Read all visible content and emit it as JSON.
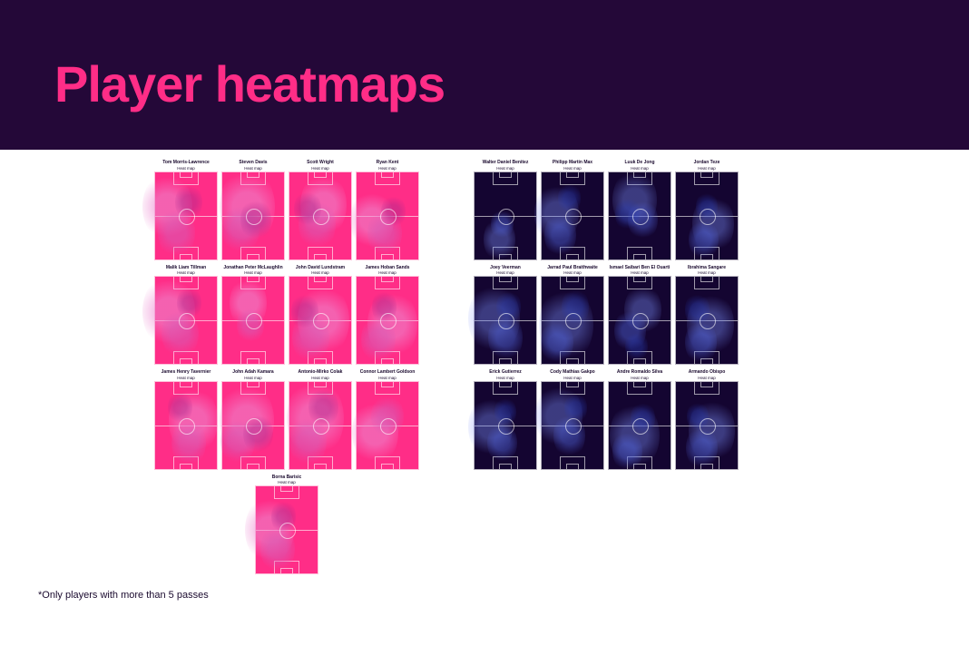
{
  "header": {
    "title": "Player heatmaps"
  },
  "footnote": "*Only players with more than 5 passes",
  "pitch_sublabel": "Heat map",
  "colors": {
    "header_bg": "#240838",
    "accent_pink": "#ff2d87",
    "accent_navy": "#140531",
    "heat_pink": [
      "rgba(236,140,210,0.55)",
      "rgba(214,90,180,0.55)",
      "rgba(170,40,140,0.45)"
    ],
    "heat_blue": [
      "rgba(120,140,245,0.40)",
      "rgba(80,100,220,0.45)",
      "rgba(40,60,180,0.40)"
    ]
  },
  "teams": [
    {
      "name": "team-a",
      "style": "pink",
      "rows": [
        [
          {
            "name": "Tom Morris-Lawrence",
            "blobs": [
              {
                "x": 20,
                "y": 40,
                "r": 40
              },
              {
                "x": 35,
                "y": 70,
                "r": 30
              },
              {
                "x": 55,
                "y": 35,
                "r": 22
              }
            ]
          },
          {
            "name": "Steven Davis",
            "blobs": [
              {
                "x": 40,
                "y": 40,
                "r": 45
              },
              {
                "x": 30,
                "y": 65,
                "r": 30
              },
              {
                "x": 55,
                "y": 55,
                "r": 25
              }
            ]
          },
          {
            "name": "Scott Wright",
            "blobs": [
              {
                "x": 55,
                "y": 38,
                "r": 38
              },
              {
                "x": 45,
                "y": 60,
                "r": 30
              },
              {
                "x": 30,
                "y": 42,
                "r": 22
              }
            ]
          },
          {
            "name": "Ryan Kent",
            "blobs": [
              {
                "x": 25,
                "y": 55,
                "r": 35
              },
              {
                "x": 45,
                "y": 70,
                "r": 28
              },
              {
                "x": 60,
                "y": 45,
                "r": 20
              }
            ]
          }
        ],
        [
          {
            "name": "Malik Liam Tillman",
            "blobs": [
              {
                "x": 22,
                "y": 40,
                "r": 42
              },
              {
                "x": 40,
                "y": 65,
                "r": 30
              },
              {
                "x": 55,
                "y": 30,
                "r": 20
              }
            ]
          },
          {
            "name": "Jonathan Peter McLaughlin",
            "blobs": [
              {
                "x": 42,
                "y": 30,
                "r": 30
              },
              {
                "x": 45,
                "y": 55,
                "r": 22
              }
            ]
          },
          {
            "name": "John David Lundstram",
            "blobs": [
              {
                "x": 55,
                "y": 50,
                "r": 42
              },
              {
                "x": 35,
                "y": 70,
                "r": 30
              },
              {
                "x": 25,
                "y": 40,
                "r": 22
              }
            ]
          },
          {
            "name": "James Hoban Sands",
            "blobs": [
              {
                "x": 58,
                "y": 55,
                "r": 40
              },
              {
                "x": 35,
                "y": 72,
                "r": 28
              },
              {
                "x": 45,
                "y": 35,
                "r": 20
              }
            ]
          }
        ],
        [
          {
            "name": "James Henry Tavernier",
            "blobs": [
              {
                "x": 62,
                "y": 45,
                "r": 40
              },
              {
                "x": 55,
                "y": 70,
                "r": 28
              },
              {
                "x": 40,
                "y": 30,
                "r": 20
              }
            ]
          },
          {
            "name": "John Adah Kamara",
            "blobs": [
              {
                "x": 40,
                "y": 45,
                "r": 44
              },
              {
                "x": 25,
                "y": 68,
                "r": 28
              },
              {
                "x": 58,
                "y": 60,
                "r": 24
              }
            ]
          },
          {
            "name": "Antonio-Mirko Colak",
            "blobs": [
              {
                "x": 42,
                "y": 42,
                "r": 46
              },
              {
                "x": 30,
                "y": 68,
                "r": 30
              },
              {
                "x": 55,
                "y": 30,
                "r": 24
              }
            ]
          },
          {
            "name": "Connor Lambert Goldson",
            "blobs": [
              {
                "x": 30,
                "y": 58,
                "r": 38
              },
              {
                "x": 50,
                "y": 40,
                "r": 26
              }
            ]
          }
        ],
        [
          {
            "name": "Borna Barisic",
            "blobs": [
              {
                "x": 22,
                "y": 50,
                "r": 40
              },
              {
                "x": 35,
                "y": 72,
                "r": 28
              },
              {
                "x": 45,
                "y": 35,
                "r": 20
              }
            ]
          }
        ]
      ]
    },
    {
      "name": "team-b",
      "style": "navy",
      "rows": [
        [
          {
            "name": "Walter Daniel Benitez",
            "blobs": [
              {
                "x": 40,
                "y": 78,
                "r": 26
              },
              {
                "x": 45,
                "y": 60,
                "r": 18
              }
            ]
          },
          {
            "name": "Philipp Martin Max",
            "blobs": [
              {
                "x": 24,
                "y": 48,
                "r": 36
              },
              {
                "x": 30,
                "y": 72,
                "r": 26
              },
              {
                "x": 45,
                "y": 30,
                "r": 18
              }
            ]
          },
          {
            "name": "Luuk De Jong",
            "blobs": [
              {
                "x": 42,
                "y": 32,
                "r": 36
              },
              {
                "x": 55,
                "y": 55,
                "r": 24
              },
              {
                "x": 30,
                "y": 48,
                "r": 20
              }
            ]
          },
          {
            "name": "Jordan Teze",
            "blobs": [
              {
                "x": 60,
                "y": 60,
                "r": 34
              },
              {
                "x": 45,
                "y": 78,
                "r": 24
              },
              {
                "x": 50,
                "y": 40,
                "r": 18
              }
            ]
          }
        ],
        [
          {
            "name": "Joey Veerman",
            "blobs": [
              {
                "x": 32,
                "y": 48,
                "r": 42
              },
              {
                "x": 50,
                "y": 70,
                "r": 28
              },
              {
                "x": 55,
                "y": 35,
                "r": 20
              }
            ]
          },
          {
            "name": "Jarrad Paul Braithwaite",
            "blobs": [
              {
                "x": 40,
                "y": 55,
                "r": 44
              },
              {
                "x": 25,
                "y": 75,
                "r": 26
              },
              {
                "x": 55,
                "y": 35,
                "r": 22
              }
            ]
          },
          {
            "name": "Ismael Saibari Ben El Ouarti",
            "blobs": [
              {
                "x": 55,
                "y": 38,
                "r": 30
              },
              {
                "x": 35,
                "y": 62,
                "r": 26
              },
              {
                "x": 45,
                "y": 80,
                "r": 18
              }
            ]
          },
          {
            "name": "Ibrahima Sangare",
            "blobs": [
              {
                "x": 56,
                "y": 55,
                "r": 38
              },
              {
                "x": 40,
                "y": 75,
                "r": 26
              },
              {
                "x": 35,
                "y": 38,
                "r": 20
              }
            ]
          }
        ],
        [
          {
            "name": "Erick Gutierrez",
            "blobs": [
              {
                "x": 26,
                "y": 52,
                "r": 36
              },
              {
                "x": 45,
                "y": 70,
                "r": 24
              },
              {
                "x": 50,
                "y": 35,
                "r": 18
              }
            ]
          },
          {
            "name": "Cody Mathias Gakpo",
            "blobs": [
              {
                "x": 28,
                "y": 40,
                "r": 38
              },
              {
                "x": 45,
                "y": 62,
                "r": 26
              },
              {
                "x": 55,
                "y": 30,
                "r": 18
              }
            ]
          },
          {
            "name": "Andre Romaldo Silva",
            "blobs": [
              {
                "x": 42,
                "y": 62,
                "r": 40
              },
              {
                "x": 30,
                "y": 80,
                "r": 24
              },
              {
                "x": 55,
                "y": 42,
                "r": 20
              }
            ]
          },
          {
            "name": "Armando Obispo",
            "blobs": [
              {
                "x": 58,
                "y": 56,
                "r": 38
              },
              {
                "x": 42,
                "y": 76,
                "r": 26
              },
              {
                "x": 35,
                "y": 40,
                "r": 18
              }
            ]
          }
        ]
      ]
    }
  ]
}
